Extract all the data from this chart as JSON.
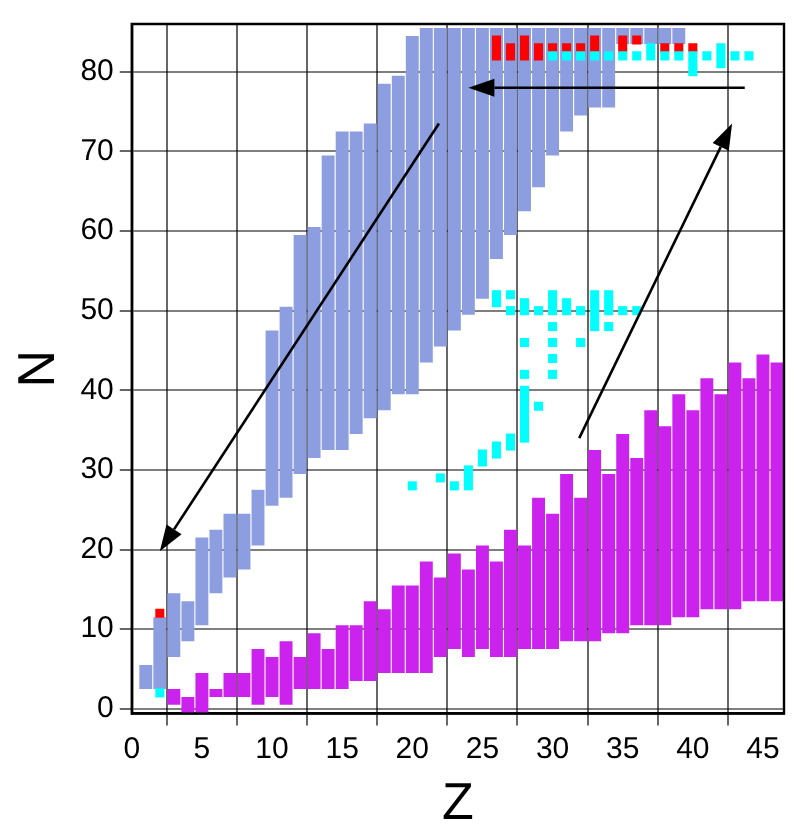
{
  "chart_data": {
    "type": "bar",
    "xlabel": "Z",
    "ylabel": "N",
    "xlim": [
      0,
      46.5
    ],
    "ylim": [
      -0.6,
      86
    ],
    "xticks": [
      0,
      5,
      10,
      15,
      20,
      25,
      30,
      35,
      40,
      45
    ],
    "yticks": [
      0,
      10,
      20,
      30,
      40,
      50,
      60,
      70,
      80
    ],
    "grid": true,
    "legend": false,
    "marker": "square",
    "series": [
      {
        "color": "#8c9ee0",
        "x": [
          1,
          2,
          3,
          4,
          5,
          6,
          7,
          8,
          9,
          10,
          11,
          12,
          13,
          14,
          15,
          16,
          17,
          18,
          19,
          20,
          21,
          22,
          23,
          24,
          25,
          26,
          27,
          28,
          29,
          30,
          31,
          32,
          33,
          34,
          35,
          36,
          37,
          38,
          39
        ],
        "base": [
          2.5,
          2.5,
          6.5,
          8.5,
          10.5,
          14.5,
          16.5,
          17.5,
          20.5,
          25.5,
          26.5,
          29.5,
          31.5,
          32.5,
          32.5,
          34.5,
          36.5,
          37.5,
          39.5,
          39.5,
          43.5,
          45.5,
          47.5,
          49.5,
          51.5,
          56.5,
          59.5,
          62.5,
          65.5,
          69.5,
          72.5,
          74.5,
          75.5,
          75.5,
          83.5,
          83.5,
          83.5,
          83.5,
          83.5
        ],
        "values": [
          3,
          9,
          8,
          5,
          11,
          8,
          8,
          7,
          7,
          22,
          24,
          30,
          29,
          37,
          40,
          38,
          37,
          41,
          40,
          45,
          42,
          40,
          38,
          36,
          34,
          29,
          26,
          23,
          20,
          16,
          13,
          11,
          10,
          10,
          2,
          2,
          2,
          2,
          2
        ]
      },
      {
        "color": "#cc22ee",
        "x": [
          3,
          4,
          5,
          6,
          7,
          8,
          9,
          10,
          11,
          12,
          13,
          14,
          15,
          16,
          17,
          18,
          19,
          20,
          21,
          22,
          23,
          24,
          25,
          26,
          27,
          28,
          29,
          30,
          31,
          32,
          33,
          34,
          35,
          36,
          37,
          38,
          39,
          40,
          41,
          42,
          43,
          44,
          45,
          46
        ],
        "base": [
          0.5,
          -0.5,
          -0.5,
          1.5,
          1.5,
          1.5,
          0.5,
          1.5,
          0.5,
          2.5,
          2.5,
          2.5,
          2.5,
          3.5,
          3.5,
          4.5,
          4.5,
          4.5,
          4.5,
          6.5,
          7.5,
          6.5,
          7.5,
          6.5,
          6.5,
          7.5,
          7.5,
          7.5,
          8.5,
          8.5,
          8.5,
          9.5,
          9.5,
          10.5,
          10.5,
          10.5,
          11.5,
          11.5,
          12.5,
          12.5,
          12.5,
          13.5,
          13.5,
          13.5
        ],
        "values": [
          2,
          2,
          5,
          1,
          3,
          3,
          7,
          5,
          8,
          4,
          7,
          5,
          8,
          7,
          10,
          8,
          11,
          11,
          14,
          10,
          12,
          11,
          13,
          12,
          16,
          13,
          19,
          17,
          21,
          18,
          24,
          20,
          25,
          21,
          27,
          25,
          28,
          26,
          29,
          27,
          31,
          28,
          31,
          30
        ]
      },
      {
        "type": "scatter",
        "color": "#00ffff",
        "x": [
          2,
          20,
          22,
          23,
          24,
          24,
          24,
          25,
          25,
          26,
          26,
          27,
          27,
          28,
          28,
          28,
          28,
          28,
          29,
          28,
          28,
          28,
          30,
          30,
          28,
          30,
          32,
          30,
          33,
          34,
          33,
          27,
          28,
          29,
          30,
          31,
          32,
          33,
          34,
          35,
          36,
          26,
          28,
          30,
          31,
          33,
          34,
          26,
          27,
          30,
          33,
          34,
          30,
          31,
          32,
          33,
          34,
          35,
          36,
          37,
          38,
          39,
          40,
          41,
          42,
          43,
          44,
          37,
          42,
          40,
          42,
          40
        ],
        "values": [
          2,
          28,
          29,
          28,
          28,
          29,
          30,
          31,
          32,
          32,
          33,
          33,
          34,
          34,
          35,
          36,
          37,
          38,
          38,
          39,
          40,
          42,
          42,
          44,
          46,
          46,
          46,
          48,
          48,
          48,
          49,
          50,
          50,
          50,
          50,
          50,
          50,
          50,
          50,
          50,
          50,
          51,
          51,
          51,
          51,
          51,
          51,
          52,
          52,
          52,
          52,
          52,
          82,
          82,
          82,
          82,
          82,
          82,
          82,
          82,
          82,
          82,
          82,
          82,
          82,
          82,
          82,
          83,
          83,
          81,
          81,
          80
        ]
      },
      {
        "type": "scatter",
        "color": "#ff0000",
        "x": [
          2,
          26,
          26,
          26,
          27,
          27,
          28,
          28,
          28,
          29,
          29,
          30,
          31,
          32,
          33,
          33,
          35,
          35,
          36,
          38,
          39,
          40
        ],
        "values": [
          12,
          82,
          83,
          84,
          82,
          83,
          82,
          83,
          84,
          82,
          83,
          83,
          83,
          83,
          83,
          84,
          83,
          84,
          84,
          83,
          83,
          83
        ]
      }
    ]
  }
}
